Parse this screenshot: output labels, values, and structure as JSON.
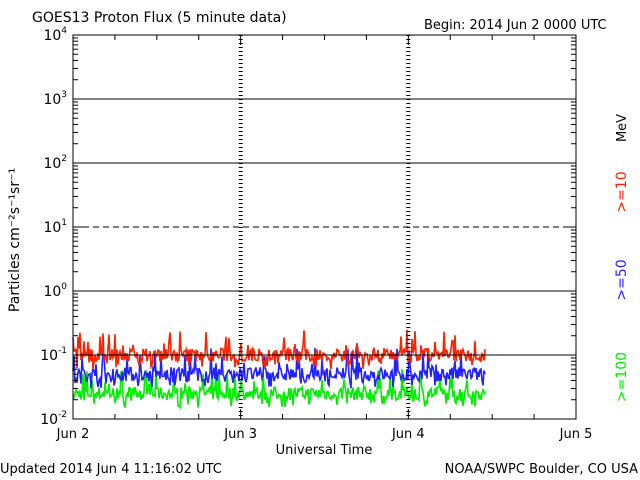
{
  "header": {
    "title": "GOES13 Proton Flux (5 minute data)",
    "begin": "Begin: 2014 Jun 2 0000 UTC"
  },
  "footer": {
    "updated": "Updated 2014 Jun  4 11:16:02 UTC",
    "credit": "NOAA/SWPC Boulder, CO USA"
  },
  "legend": {
    "unit": "MeV",
    "items": [
      {
        "label": ">=10",
        "color": "#ff2200"
      },
      {
        "label": ">=50",
        "color": "#2222ff"
      },
      {
        "label": ">=100",
        "color": "#00ee00"
      }
    ]
  },
  "chart_data": {
    "type": "line",
    "xlabel": "Universal Time",
    "ylabel": "Particles cm⁻²s⁻¹sr⁻¹",
    "x_ticks": [
      "Jun 2",
      "Jun 3",
      "Jun 4",
      "Jun 5"
    ],
    "y_tick_labels": [
      {
        "base": "10",
        "exp": "-2"
      },
      {
        "base": "10",
        "exp": "-1"
      },
      {
        "base": "10",
        "exp": "0"
      },
      {
        "base": "10",
        "exp": "1"
      },
      {
        "base": "10",
        "exp": "2"
      },
      {
        "base": "10",
        "exp": "3"
      },
      {
        "base": "10",
        "exp": "4"
      }
    ],
    "y_scale": "log",
    "ylim": [
      0.01,
      10000
    ],
    "xlim_days": [
      0,
      3
    ],
    "data_end_day": 2.46,
    "threshold_lines": [
      {
        "value": 10,
        "style": "dashed"
      },
      {
        "value": 1,
        "style": "solid"
      },
      {
        "value": 100,
        "style": "solid"
      },
      {
        "value": 1000,
        "style": "solid"
      },
      {
        "value": 0.1,
        "style": "solid"
      }
    ],
    "series": [
      {
        "name": ">=10 MeV",
        "color": "#ff2200",
        "typical_value": 0.1,
        "range": [
          0.06,
          0.25
        ]
      },
      {
        "name": ">=50 MeV",
        "color": "#2222ff",
        "typical_value": 0.05,
        "range": [
          0.03,
          0.13
        ]
      },
      {
        "name": ">=100 MeV",
        "color": "#00ee00",
        "typical_value": 0.025,
        "range": [
          0.015,
          0.06
        ]
      }
    ]
  }
}
